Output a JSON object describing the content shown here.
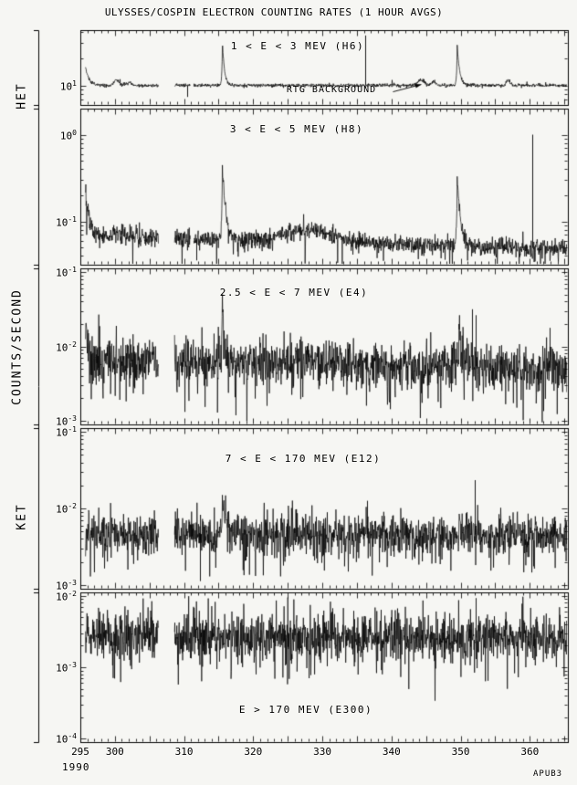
{
  "chart_data": {
    "type": "line",
    "title": "ULYSSES/COSPIN ELECTRON COUNTING RATES (1 HOUR AVGS)",
    "footer_label": "APUB3",
    "ylabel": "COUNTS/SECOND",
    "group_labels": {
      "top": "HET",
      "bottom": "KET"
    },
    "x": {
      "label_year": "1990",
      "units": "day of year",
      "range": [
        295,
        365.5
      ],
      "sample_range": [
        295.75,
        365.5
      ],
      "samples_per_day": 24,
      "labeled_ticks": [
        295,
        300,
        310,
        320,
        330,
        340,
        350,
        360
      ],
      "minor_tick_step": 1,
      "major_tick_step": 5
    },
    "panels": [
      {
        "id": "H6",
        "label": "1 < E < 3 MEV (H6)",
        "annotation": {
          "text": "RTG BACKGROUND",
          "points_to_day": 344.7,
          "points_to_log10": 1.02
        },
        "y_log_range": [
          0.78,
          1.62
        ],
        "y_ticks_exp": [
          1
        ],
        "model": {
          "base": 1.0,
          "slope": 0,
          "noise": 0.01,
          "down_p": 0,
          "down_amp": 0,
          "up_p": 0.005,
          "up_amp": 0.06,
          "start": {
            "amp": 0.2,
            "tau": 0.5
          }
        },
        "bumps": [
          {
            "day": 300.2,
            "amp": 0.06,
            "sigma": 0.35
          },
          {
            "day": 302.0,
            "amp": 0.03,
            "sigma": 0.4
          },
          {
            "day": 344.3,
            "amp": 0.06,
            "sigma": 0.45
          },
          {
            "day": 346.1,
            "amp": 0.04,
            "sigma": 0.3
          },
          {
            "day": 356.9,
            "amp": 0.05,
            "sigma": 0.3
          }
        ],
        "peaks": [
          {
            "day": 315.55,
            "amp": 0.48,
            "rise": 0.08,
            "decay": 0.3,
            "approx_value": 30
          },
          {
            "day": 349.5,
            "amp": 0.45,
            "rise": 0.08,
            "decay": 0.35,
            "approx_value": 28
          }
        ],
        "spikes": [
          {
            "day": 336.2,
            "to": 1.56
          },
          {
            "day": 310.5,
            "to": 0.87
          }
        ],
        "gaps": [
          [
            306.3,
            308.6
          ],
          [
            310.9,
            311.4
          ]
        ]
      },
      {
        "id": "H8",
        "label": "3 < E < 5 MEV (H8)",
        "y_log_range": [
          -1.5,
          0.3
        ],
        "y_ticks_exp": [
          0,
          -1
        ],
        "model": {
          "base": -1.16,
          "slope": -0.0023,
          "noise": 0.05,
          "down_p": 0.04,
          "down_amp": 0.35,
          "up_p": 0.01,
          "up_amp": 0.12,
          "start": {
            "amp": 0.56,
            "tau": 0.5
          }
        },
        "bumps": [
          {
            "day": 328.0,
            "amp": 0.13,
            "sigma": 3.2
          },
          {
            "day": 300.3,
            "amp": 0.05,
            "sigma": 0.5
          }
        ],
        "peaks": [
          {
            "day": 315.55,
            "amp": 0.88,
            "rise": 0.1,
            "decay": 0.5,
            "approx_value": 0.5
          },
          {
            "day": 349.5,
            "amp": 0.78,
            "rise": 0.1,
            "decay": 0.55,
            "approx_value": 0.35
          }
        ],
        "spikes": [
          {
            "day": 360.3,
            "to": 0.0
          },
          {
            "day": 311.8,
            "to": -1.45
          }
        ],
        "gaps": [
          [
            306.3,
            308.6
          ],
          [
            310.9,
            311.4
          ]
        ]
      },
      {
        "id": "E4",
        "label": "2.5 < E < 7 MEV (E4)",
        "y_log_range": [
          -3.05,
          -0.95
        ],
        "y_ticks_exp": [
          -1,
          -2,
          -3
        ],
        "model": {
          "base": -2.18,
          "slope": -0.0015,
          "noise": 0.14,
          "down_p": 0.1,
          "down_amp": 0.55,
          "up_p": 0.04,
          "up_amp": 0.3,
          "start": {
            "amp": 0.45,
            "tau": 0.35
          }
        },
        "bumps": [
          {
            "day": 328.0,
            "amp": 0.06,
            "sigma": 3.0
          }
        ],
        "peaks": [
          {
            "day": 315.55,
            "amp": 0.95,
            "rise": 0.07,
            "decay": 0.28,
            "approx_value": 0.06
          },
          {
            "day": 349.8,
            "amp": 0.72,
            "rise": 0.08,
            "decay": 0.3,
            "approx_value": 0.04
          }
        ],
        "spikes": [
          {
            "day": 351.6,
            "to": -1.5
          },
          {
            "day": 352.2,
            "to": -1.58
          },
          {
            "day": 362.9,
            "to": -1.75
          }
        ],
        "gaps": [
          [
            306.3,
            308.6
          ]
        ]
      },
      {
        "id": "E12",
        "label": "7 < E < 170 MEV (E12)",
        "y_log_range": [
          -3.05,
          -0.95
        ],
        "y_ticks_exp": [
          -1,
          -2,
          -3
        ],
        "model": {
          "base": -2.32,
          "slope": -0.0004,
          "noise": 0.12,
          "down_p": 0.09,
          "down_amp": 0.5,
          "up_p": 0.03,
          "up_amp": 0.25,
          "start": null
        },
        "bumps": [],
        "peaks": [
          {
            "day": 315.6,
            "amp": 0.5,
            "rise": 0.07,
            "decay": 0.25,
            "approx_value": 0.015
          },
          {
            "day": 349.8,
            "amp": 0.22,
            "rise": 0.08,
            "decay": 0.3,
            "approx_value": 0.008
          }
        ],
        "spikes": [
          {
            "day": 336.4,
            "to": -1.9
          },
          {
            "day": 352.0,
            "to": -1.63
          },
          {
            "day": 312.3,
            "to": -2.95
          }
        ],
        "gaps": [
          [
            306.3,
            308.6
          ]
        ]
      },
      {
        "id": "E300",
        "label": "E > 170 MEV (E300)",
        "y_log_range": [
          -4.05,
          -1.95
        ],
        "y_ticks_exp": [
          -2,
          -3,
          -4
        ],
        "model": {
          "base": -2.55,
          "slope": -0.0006,
          "noise": 0.16,
          "down_p": 0.08,
          "down_amp": 0.6,
          "up_p": 0.03,
          "up_amp": 0.35,
          "start": null
        },
        "bumps": [],
        "peaks": [],
        "spikes": [
          {
            "day": 352.1,
            "to": -2.03
          }
        ],
        "gaps": [
          [
            306.3,
            308.6
          ]
        ]
      }
    ]
  }
}
